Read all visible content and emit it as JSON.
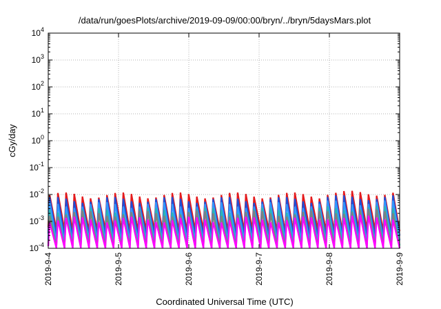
{
  "chart_data": {
    "type": "line",
    "title": "/data/run/goesPlots/archive/2019-09-09/00:00/bryn/../bryn/5daysMars.plot",
    "xlabel": "Coordinated Universal Time (UTC)",
    "ylabel": "cGy/day",
    "yscale": "log",
    "ylim": [
      0.0001,
      10000
    ],
    "xlim": [
      "2019-9-4",
      "2019-9-9"
    ],
    "x_ticks": [
      "2019-9-4",
      "2019-9-5",
      "2019-9-6",
      "2019-9-7",
      "2019-9-8",
      "2019-9-9"
    ],
    "y_ticks": [
      {
        "base": "10",
        "exp": "-4"
      },
      {
        "base": "10",
        "exp": "-3"
      },
      {
        "base": "10",
        "exp": "-2"
      },
      {
        "base": "10",
        "exp": "-1"
      },
      {
        "base": "10",
        "exp": "0"
      },
      {
        "base": "10",
        "exp": "1"
      },
      {
        "base": "10",
        "exp": "2"
      },
      {
        "base": "10",
        "exp": "3"
      },
      {
        "base": "10",
        "exp": "4"
      }
    ],
    "grid": true,
    "sawtooth": {
      "cycles_per_day": 8.5,
      "series": [
        {
          "color": "#e41a1c",
          "peak": 0.0095,
          "trough": 0.00045
        },
        {
          "color": "#1f4fd6",
          "peak": 0.0065,
          "trough": 0.00028
        },
        {
          "color": "#3399ff",
          "peak": 0.0042,
          "trough": 0.00018
        },
        {
          "color": "#2bb5b5",
          "peak": 0.0026,
          "trough": 0.00012
        },
        {
          "color": "#808080",
          "peak": 0.002,
          "trough": 0.0001
        },
        {
          "color": "#ff00ff",
          "peak": 0.0012,
          "trough": 8e-05
        }
      ]
    }
  }
}
